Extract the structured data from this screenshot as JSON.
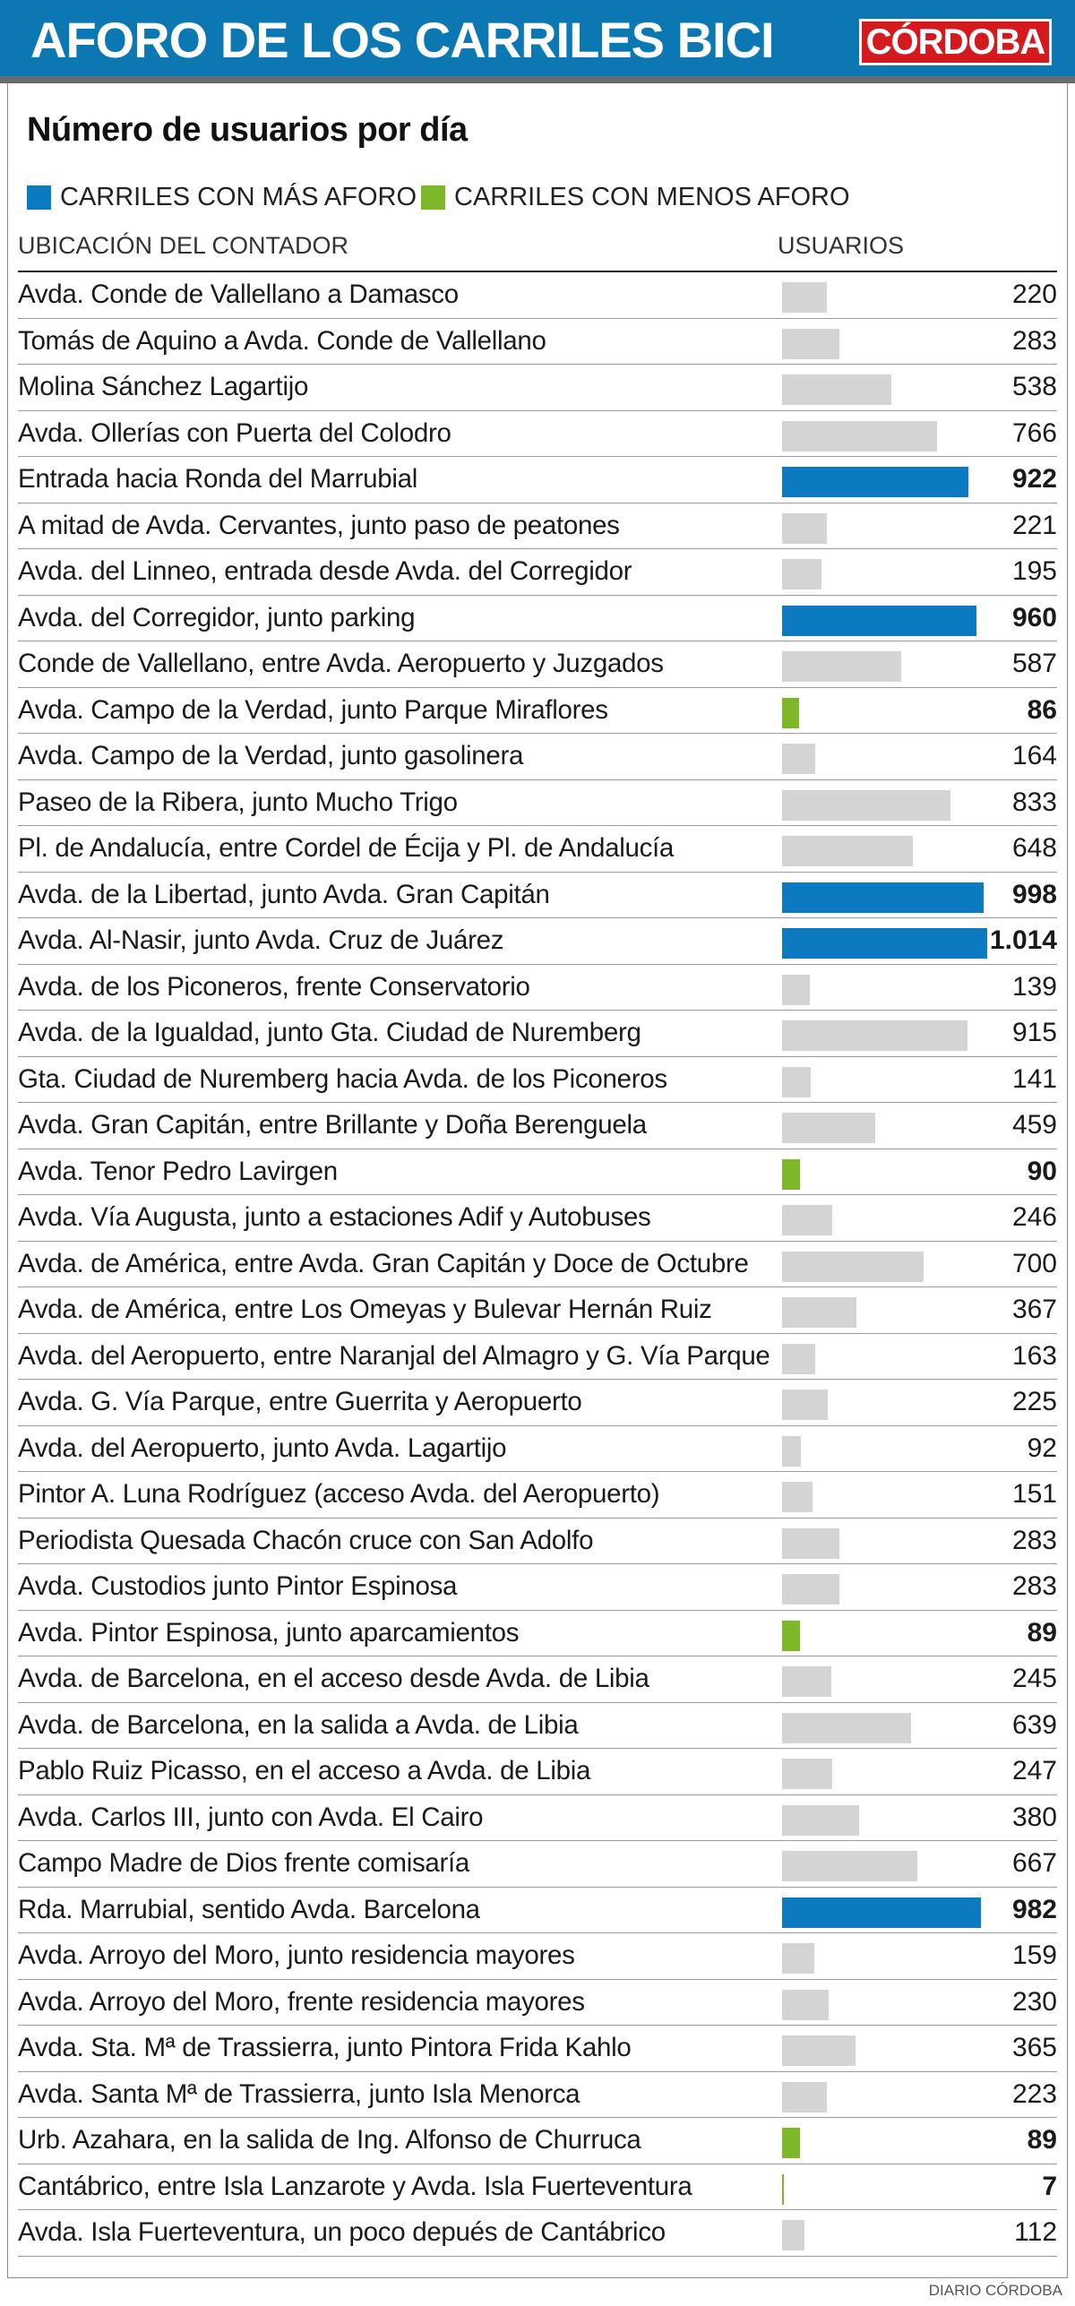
{
  "header": {
    "title": "AFORO DE LOS CARRILES BICI",
    "brand": "CÓRDOBA"
  },
  "subtitle": "Número de usuarios por día",
  "legend": {
    "high": {
      "label": "CARRILES CON MÁS AFORO",
      "color": "#0b7ac0"
    },
    "low": {
      "label": "CARRILES CON MENOS AFORO",
      "color": "#7cb827"
    }
  },
  "neutral_color": "#d4d4d4",
  "columns": {
    "location": "UBICACIÓN DEL CONTADOR",
    "users": "USUARIOS"
  },
  "credit": "DIARIO CÓRDOBA",
  "chart_data": {
    "type": "bar",
    "orientation": "horizontal",
    "title": "AFORO DE LOS CARRILES BICI",
    "subtitle": "Número de usuarios por día",
    "xlabel": "USUARIOS",
    "ylabel": "UBICACIÓN DEL CONTADOR",
    "xlim": [
      0,
      1014
    ],
    "rows": [
      {
        "label": "Avda. Conde de Vallellano a Damasco",
        "value": 220,
        "display": "220",
        "category": "normal"
      },
      {
        "label": "Tomás de Aquino a Avda. Conde de Vallellano",
        "value": 283,
        "display": "283",
        "category": "normal"
      },
      {
        "label": "Molina Sánchez Lagartijo",
        "value": 538,
        "display": "538",
        "category": "normal"
      },
      {
        "label": "Avda. Ollerías con Puerta del Colodro",
        "value": 766,
        "display": "766",
        "category": "normal"
      },
      {
        "label": "Entrada hacia Ronda del Marrubial",
        "value": 922,
        "display": "922",
        "category": "high"
      },
      {
        "label": "A mitad de Avda. Cervantes, junto paso de peatones",
        "value": 221,
        "display": "221",
        "category": "normal"
      },
      {
        "label": "Avda. del Linneo, entrada desde Avda. del Corregidor",
        "value": 195,
        "display": "195",
        "category": "normal"
      },
      {
        "label": "Avda. del Corregidor, junto parking",
        "value": 960,
        "display": "960",
        "category": "high"
      },
      {
        "label": "Conde de Vallellano, entre Avda. Aeropuerto y Juzgados",
        "value": 587,
        "display": "587",
        "category": "normal"
      },
      {
        "label": "Avda. Campo de la Verdad, junto Parque Miraflores",
        "value": 86,
        "display": "86",
        "category": "low"
      },
      {
        "label": "Avda. Campo de la Verdad, junto gasolinera",
        "value": 164,
        "display": "164",
        "category": "normal"
      },
      {
        "label": "Paseo de la Ribera, junto Mucho Trigo",
        "value": 833,
        "display": "833",
        "category": "normal"
      },
      {
        "label": "Pl. de Andalucía, entre Cordel de Écija y Pl. de Andalucía",
        "value": 648,
        "display": "648",
        "category": "normal"
      },
      {
        "label": "Avda. de la Libertad, junto Avda. Gran Capitán",
        "value": 998,
        "display": "998",
        "category": "high"
      },
      {
        "label": "Avda. Al-Nasir, junto Avda. Cruz de Juárez",
        "value": 1014,
        "display": "1.014",
        "category": "high"
      },
      {
        "label": "Avda. de los Piconeros, frente Conservatorio",
        "value": 139,
        "display": "139",
        "category": "normal"
      },
      {
        "label": "Avda. de la Igualdad, junto Gta. Ciudad de Nuremberg",
        "value": 915,
        "display": "915",
        "category": "normal"
      },
      {
        "label": "Gta. Ciudad de Nuremberg hacia Avda. de los Piconeros",
        "value": 141,
        "display": "141",
        "category": "normal"
      },
      {
        "label": "Avda. Gran Capitán, entre Brillante y Doña Berenguela",
        "value": 459,
        "display": "459",
        "category": "normal"
      },
      {
        "label": "Avda. Tenor Pedro Lavirgen",
        "value": 90,
        "display": "90",
        "category": "low"
      },
      {
        "label": "Avda. Vía Augusta, junto a estaciones Adif y Autobuses",
        "value": 246,
        "display": "246",
        "category": "normal"
      },
      {
        "label": "Avda. de América, entre Avda. Gran Capitán y Doce de Octubre",
        "value": 700,
        "display": "700",
        "category": "normal"
      },
      {
        "label": "Avda. de América, entre Los Omeyas y Bulevar Hernán Ruiz",
        "value": 367,
        "display": "367",
        "category": "normal"
      },
      {
        "label": "Avda. del Aeropuerto, entre Naranjal del Almagro y G. Vía Parque",
        "value": 163,
        "display": "163",
        "category": "normal"
      },
      {
        "label": "Avda. G. Vía Parque, entre Guerrita y Aeropuerto",
        "value": 225,
        "display": "225",
        "category": "normal"
      },
      {
        "label": "Avda. del Aeropuerto, junto Avda. Lagartijo",
        "value": 92,
        "display": "92",
        "category": "normal"
      },
      {
        "label": "Pintor A. Luna Rodríguez (acceso Avda. del Aeropuerto)",
        "value": 151,
        "display": "151",
        "category": "normal"
      },
      {
        "label": "Periodista Quesada Chacón cruce con San Adolfo",
        "value": 283,
        "display": "283",
        "category": "normal"
      },
      {
        "label": "Avda. Custodios junto Pintor Espinosa",
        "value": 283,
        "display": "283",
        "category": "normal"
      },
      {
        "label": "Avda. Pintor Espinosa, junto aparcamientos",
        "value": 89,
        "display": "89",
        "category": "low"
      },
      {
        "label": "Avda. de Barcelona, en el acceso desde Avda. de Libia",
        "value": 245,
        "display": "245",
        "category": "normal"
      },
      {
        "label": "Avda. de Barcelona, en la salida a Avda. de Libia",
        "value": 639,
        "display": "639",
        "category": "normal"
      },
      {
        "label": "Pablo Ruiz Picasso, en el acceso a Avda. de Libia",
        "value": 247,
        "display": "247",
        "category": "normal"
      },
      {
        "label": "Avda. Carlos III, junto con Avda. El Cairo",
        "value": 380,
        "display": "380",
        "category": "normal"
      },
      {
        "label": "Campo Madre de Dios frente comisaría",
        "value": 667,
        "display": "667",
        "category": "normal"
      },
      {
        "label": "Rda. Marrubial, sentido Avda. Barcelona",
        "value": 982,
        "display": "982",
        "category": "high"
      },
      {
        "label": "Avda. Arroyo del Moro, junto residencia mayores",
        "value": 159,
        "display": "159",
        "category": "normal"
      },
      {
        "label": "Avda. Arroyo del Moro, frente residencia mayores",
        "value": 230,
        "display": "230",
        "category": "normal"
      },
      {
        "label": "Avda. Sta. Mª de Trassierra, junto Pintora Frida Kahlo",
        "value": 365,
        "display": "365",
        "category": "normal"
      },
      {
        "label": "Avda. Santa Mª de Trassierra, junto Isla Menorca",
        "value": 223,
        "display": "223",
        "category": "normal"
      },
      {
        "label": "Urb. Azahara, en la salida de Ing. Alfonso de Churruca",
        "value": 89,
        "display": "89",
        "category": "low"
      },
      {
        "label": "Cantábrico, entre Isla Lanzarote y Avda. Isla Fuerteventura",
        "value": 7,
        "display": "7",
        "category": "low"
      },
      {
        "label": "Avda. Isla Fuerteventura, un poco depués de Cantábrico",
        "value": 112,
        "display": "112",
        "category": "normal"
      }
    ]
  }
}
